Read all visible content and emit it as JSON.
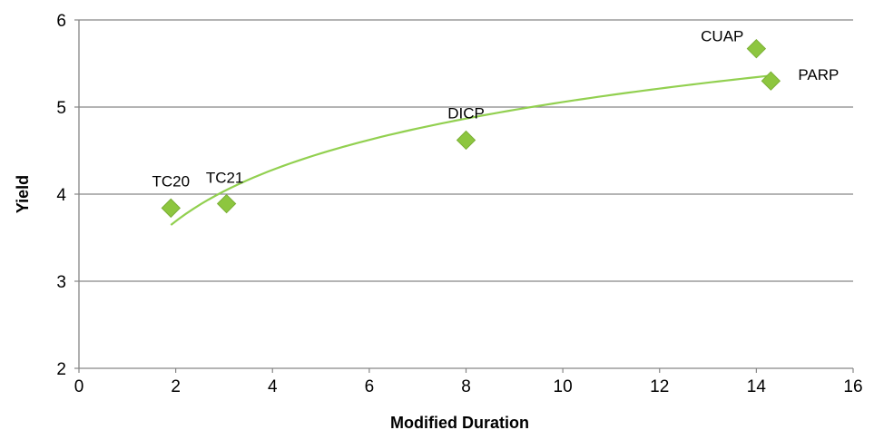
{
  "chart_data": {
    "type": "scatter",
    "title": "",
    "xlabel": "Modified Duration",
    "ylabel": "Yield",
    "xlim": [
      0,
      16
    ],
    "ylim": [
      2,
      6
    ],
    "x_ticks": [
      0,
      2,
      4,
      6,
      8,
      10,
      12,
      14,
      16
    ],
    "y_ticks": [
      2,
      3,
      4,
      5,
      6
    ],
    "grid": {
      "horizontal": true,
      "vertical": false
    },
    "legend": "none",
    "marker": "diamond",
    "colors": {
      "marker": "#8DC63F",
      "marker_edge": "#7AAF35",
      "trendline": "#92D050",
      "gridline": "#868686",
      "axis": "#868686"
    },
    "points": [
      {
        "label": "TC20",
        "x": 1.9,
        "y": 3.84
      },
      {
        "label": "TC21",
        "x": 3.05,
        "y": 3.89
      },
      {
        "label": "DICP",
        "x": 8.0,
        "y": 4.62
      },
      {
        "label": "CUAP",
        "x": 14.0,
        "y": 5.67
      },
      {
        "label": "PARP",
        "x": 14.3,
        "y": 5.3
      }
    ],
    "trendline": {
      "type": "logarithmic",
      "x_range": [
        1.9,
        14.3
      ],
      "a": 0.85,
      "b": 3.1
    }
  }
}
